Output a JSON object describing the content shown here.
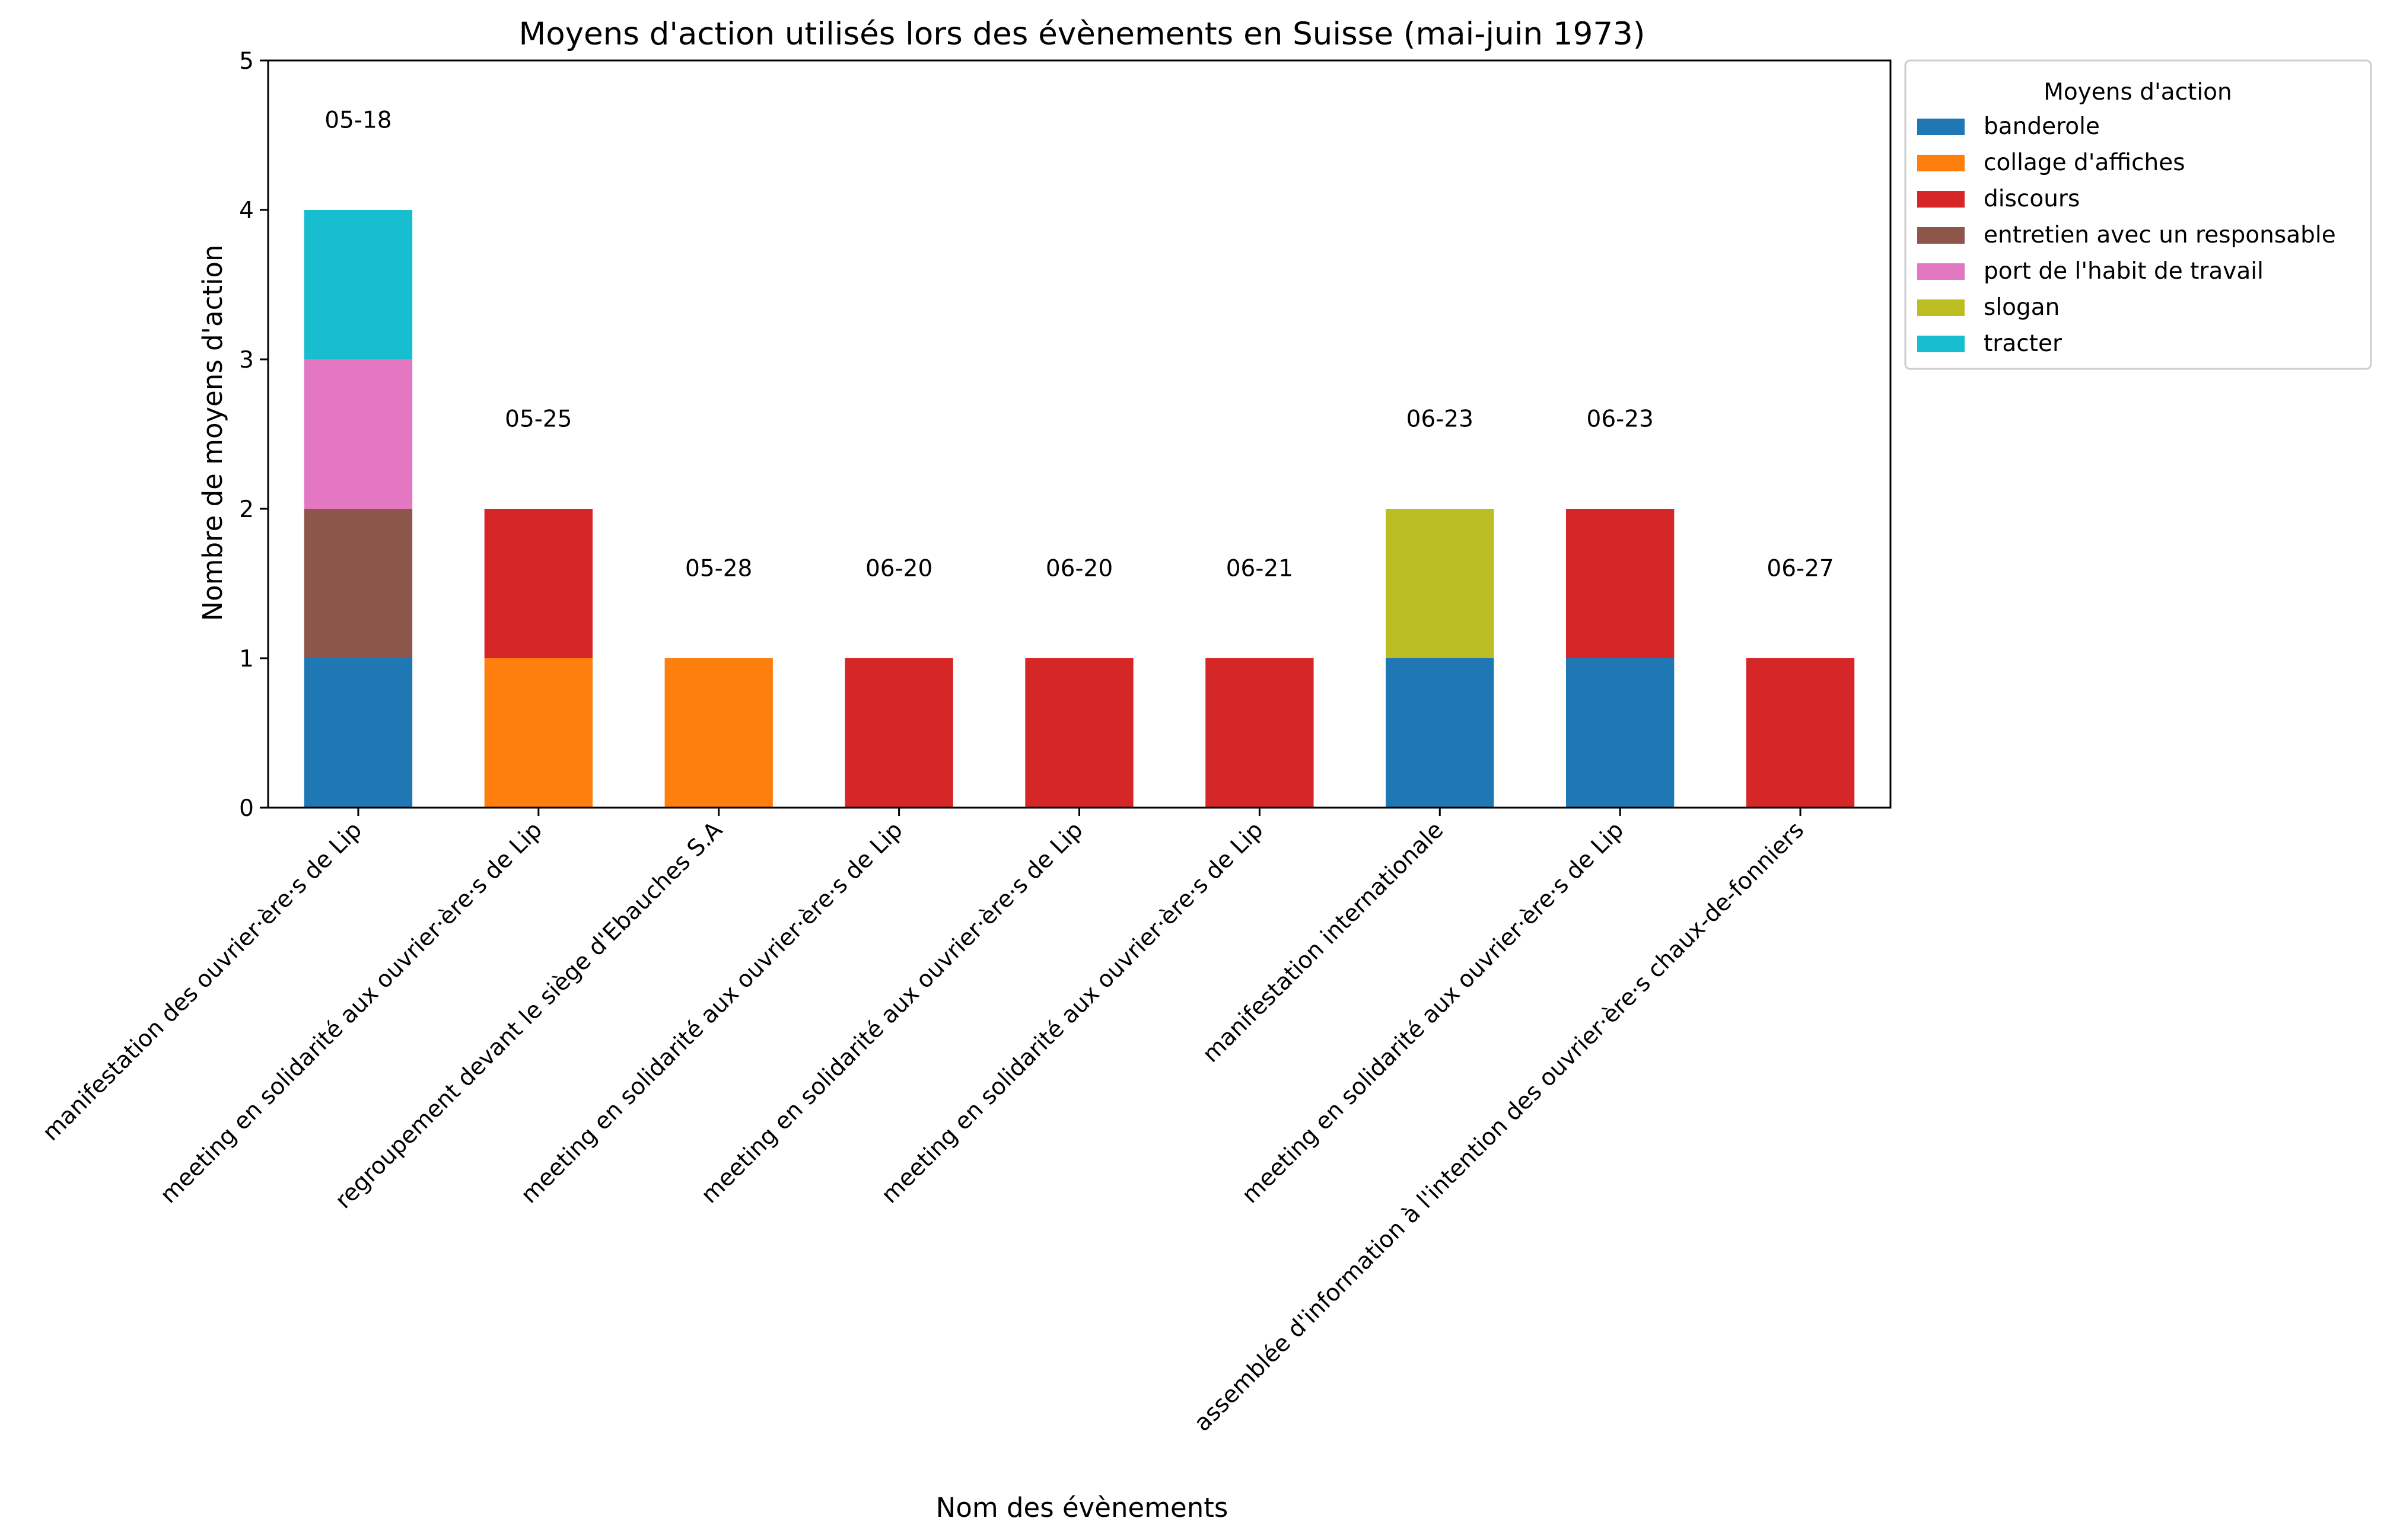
{
  "chart_data": {
    "type": "bar",
    "stacked": true,
    "title": "Moyens d'action utilisés lors des évènements en Suisse (mai-juin 1973)",
    "xlabel": "Nom des évènements",
    "ylabel": "Nombre de moyens d'action",
    "ylim": [
      0,
      5
    ],
    "yticks": [
      "0",
      "1",
      "2",
      "3",
      "4",
      "5"
    ],
    "grid": false,
    "legend": {
      "title": "Moyens d'action",
      "placement": "outside-top-right"
    },
    "categories": [
      "manifestation des ouvrier·ère·s de Lip",
      "meeting en solidarité aux ouvrier·ère·s de Lip",
      "regroupement devant le siège d'Ebauches S.A",
      "meeting en solidarité aux ouvrier·ère·s de Lip",
      "meeting en solidarité aux ouvrier·ère·s de Lip",
      "meeting en solidarité aux ouvrier·ère·s de Lip",
      "manifestation internationale",
      "meeting en solidarité aux ouvrier·ère·s de Lip",
      "assemblée d'information à l'intention des ouvrier·ère·s chaux-de-fonniers"
    ],
    "date_labels": [
      "05-18",
      "05-25",
      "05-28",
      "06-20",
      "06-20",
      "06-21",
      "06-23",
      "06-23",
      "06-27"
    ],
    "series": [
      {
        "name": "banderole",
        "color": "#1f77b4",
        "values": [
          1,
          0,
          0,
          0,
          0,
          0,
          1,
          1,
          0
        ]
      },
      {
        "name": "collage d'affiches",
        "color": "#ff7f0e",
        "values": [
          0,
          1,
          1,
          0,
          0,
          0,
          0,
          0,
          0
        ]
      },
      {
        "name": "discours",
        "color": "#d62728",
        "values": [
          0,
          1,
          0,
          1,
          1,
          1,
          0,
          1,
          1
        ]
      },
      {
        "name": "entretien avec un responsable",
        "color": "#8c564b",
        "values": [
          1,
          0,
          0,
          0,
          0,
          0,
          0,
          0,
          0
        ]
      },
      {
        "name": "port de l'habit de travail",
        "color": "#e377c2",
        "values": [
          1,
          0,
          0,
          0,
          0,
          0,
          0,
          0,
          0
        ]
      },
      {
        "name": "slogan",
        "color": "#bcbd22",
        "values": [
          0,
          0,
          0,
          0,
          0,
          0,
          1,
          0,
          0
        ]
      },
      {
        "name": "tracter",
        "color": "#17becf",
        "values": [
          1,
          0,
          0,
          0,
          0,
          0,
          0,
          0,
          0
        ]
      }
    ]
  }
}
